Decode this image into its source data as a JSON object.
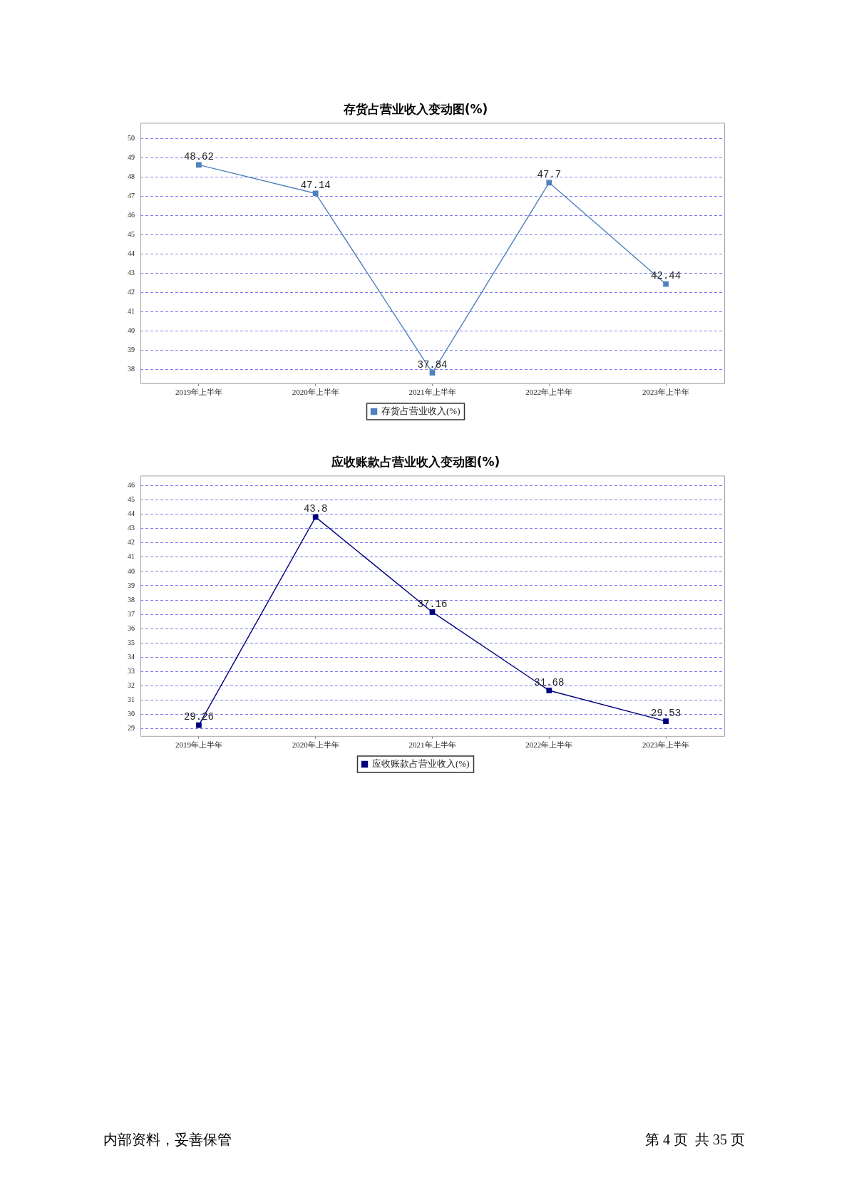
{
  "chart_data": [
    {
      "type": "line",
      "title": "存货占营业收入变动图(%)",
      "categories": [
        "2019年上半年",
        "2020年上半年",
        "2021年上半年",
        "2022年上半年",
        "2023年上半年"
      ],
      "series": [
        {
          "name": "存货占营业收入(%)",
          "color": "#4f81bd",
          "values": [
            48.62,
            47.14,
            37.84,
            47.7,
            42.44
          ]
        }
      ],
      "ylim": [
        37.3,
        50.8
      ],
      "yticks": [
        38,
        39,
        40,
        41,
        42,
        43,
        44,
        45,
        46,
        47,
        48,
        49,
        50
      ],
      "grid": "y",
      "legend": "bottom",
      "marker": "square",
      "data_labels": true
    },
    {
      "type": "line",
      "title": "应收账款占营业收入变动图(%)",
      "categories": [
        "2019年上半年",
        "2020年上半年",
        "2021年上半年",
        "2022年上半年",
        "2023年上半年"
      ],
      "series": [
        {
          "name": "应收账款占营业收入(%)",
          "color": "#000080",
          "values": [
            29.26,
            43.8,
            37.16,
            31.68,
            29.53
          ]
        }
      ],
      "ylim": [
        28.5,
        46.7
      ],
      "yticks": [
        29,
        30,
        31,
        32,
        33,
        34,
        35,
        36,
        37,
        38,
        39,
        40,
        41,
        42,
        43,
        44,
        45,
        46
      ],
      "grid": "y",
      "legend": "bottom",
      "marker": "square",
      "data_labels": true,
      "annotations": [
        "内部资料，妥善保管",
        "第 4 页  共 35 页"
      ]
    }
  ]
}
